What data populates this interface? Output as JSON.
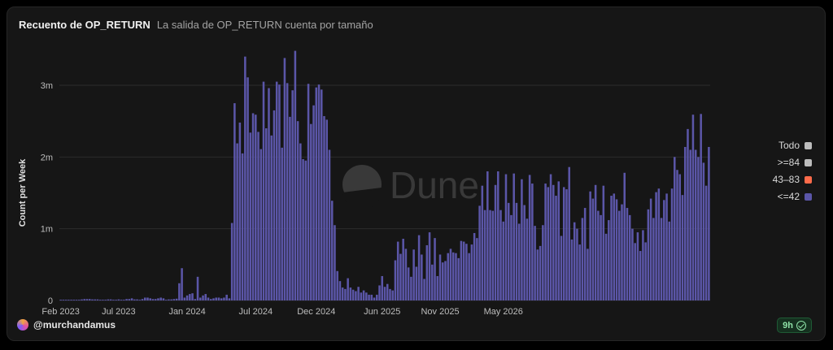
{
  "header": {
    "title": "Recuento de OP_RETURN",
    "subtitle": "La salida de OP_RETURN cuenta por tamaño"
  },
  "legend": {
    "items": [
      {
        "label": "Todo",
        "color": "#bdbdbd"
      },
      {
        "label": ">=84",
        "color": "#bdbdbd"
      },
      {
        "label": "43–83",
        "color": "#ff6b4a"
      },
      {
        "label": "<=42",
        "color": "#5b56a8"
      }
    ]
  },
  "author": {
    "handle": "@murchandamus"
  },
  "badge": {
    "label": "9h"
  },
  "watermark": {
    "text": "Dune"
  },
  "colors": {
    "bar": "#5b56a8",
    "grid": "#2c2c2c",
    "axis_text": "#bdbdbd"
  },
  "chart_data": {
    "type": "bar",
    "ylabel": "Count per Week",
    "ylim": [
      0,
      3000000
    ],
    "yticks": [
      {
        "value": 0,
        "label": "0"
      },
      {
        "value": 1000000,
        "label": "1m"
      },
      {
        "value": 2000000,
        "label": "2m"
      },
      {
        "value": 3000000,
        "label": "3m"
      }
    ],
    "xticks": [
      {
        "index": 0,
        "label": "Feb 2023"
      },
      {
        "index": 22,
        "label": "Jul 2023"
      },
      {
        "index": 48,
        "label": "Jan 2024"
      },
      {
        "index": 74,
        "label": "Jul 2024"
      },
      {
        "index": 97,
        "label": "Dec 2024"
      },
      {
        "index": 122,
        "label": "Jun 2025"
      },
      {
        "index": 144,
        "label": "Nov 2025"
      },
      {
        "index": 168,
        "label": "May 2026"
      }
    ],
    "series": [
      {
        "name": "<=42",
        "values": [
          10000,
          10000,
          10000,
          10000,
          10000,
          10000,
          10000,
          10000,
          15000,
          20000,
          20000,
          20000,
          15000,
          15000,
          15000,
          10000,
          10000,
          10000,
          15000,
          15000,
          10000,
          10000,
          15000,
          10000,
          10000,
          20000,
          20000,
          30000,
          15000,
          15000,
          10000,
          20000,
          40000,
          40000,
          30000,
          20000,
          20000,
          30000,
          40000,
          30000,
          10000,
          15000,
          15000,
          20000,
          25000,
          240000,
          450000,
          40000,
          70000,
          90000,
          100000,
          20000,
          330000,
          40000,
          70000,
          90000,
          40000,
          20000,
          30000,
          40000,
          40000,
          30000,
          40000,
          80000,
          30000,
          1080000,
          2750000,
          2190000,
          2480000,
          2050000,
          3400000,
          3110000,
          2340000,
          2610000,
          2590000,
          2350000,
          2110000,
          3050000,
          2400000,
          2960000,
          2300000,
          2650000,
          3050000,
          3010000,
          2130000,
          3380000,
          3030000,
          2560000,
          2930000,
          3480000,
          2500000,
          2190000,
          1970000,
          1950000,
          3020000,
          2460000,
          2720000,
          2970000,
          3010000,
          2940000,
          2570000,
          2520000,
          2100000,
          1390000,
          1050000,
          410000,
          270000,
          180000,
          160000,
          310000,
          180000,
          150000,
          130000,
          190000,
          110000,
          140000,
          110000,
          80000,
          80000,
          40000,
          80000,
          210000,
          340000,
          190000,
          230000,
          160000,
          140000,
          560000,
          820000,
          650000,
          860000,
          720000,
          460000,
          330000,
          710000,
          470000,
          910000,
          640000,
          300000,
          770000,
          950000,
          500000,
          870000,
          340000,
          640000,
          530000,
          550000,
          660000,
          720000,
          670000,
          660000,
          590000,
          830000,
          820000,
          790000,
          660000,
          780000,
          940000,
          870000,
          1320000,
          1600000,
          1260000,
          1800000,
          1260000,
          1250000,
          1610000,
          1800000,
          1260000,
          1100000,
          1760000,
          1360000,
          1190000,
          1770000,
          1360000,
          1070000,
          1690000,
          1330000,
          1140000,
          1750000,
          1630000,
          1040000,
          710000,
          760000,
          1050000,
          1630000,
          1580000,
          1760000,
          1610000,
          1460000,
          1660000,
          900000,
          1580000,
          1550000,
          1860000,
          850000,
          1090000,
          1000000,
          780000,
          1150000,
          1290000,
          720000,
          1520000,
          1420000,
          1610000,
          1250000,
          1190000,
          1600000,
          930000,
          1120000,
          1460000,
          1490000,
          1410000,
          1250000,
          1340000,
          1780000,
          1290000,
          1190000,
          1000000,
          800000,
          950000,
          690000,
          980000,
          810000,
          1270000,
          1420000,
          1150000,
          1510000,
          1560000,
          1150000,
          1400000,
          1490000,
          1100000,
          1560000,
          2000000,
          1820000,
          1760000,
          1470000,
          2140000,
          2390000,
          2100000,
          2590000,
          2100000,
          2000000,
          2600000,
          1920000,
          1600000,
          2140000
        ]
      }
    ]
  }
}
